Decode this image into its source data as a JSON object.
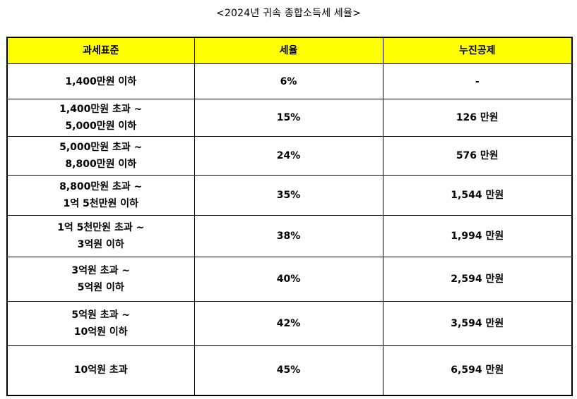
{
  "caption": "<2024년 귀속 종합소득세 세율>",
  "table": {
    "headers": [
      "과세표준",
      "세율",
      "누진공제"
    ],
    "rows": [
      {
        "bracket": [
          "1,400만원 이하",
          ""
        ],
        "rate": "6%",
        "deduction": "-"
      },
      {
        "bracket": [
          "1,400만원 초과 ~",
          "5,000만원 이하"
        ],
        "rate": "15%",
        "deduction": "126 만원"
      },
      {
        "bracket": [
          "5,000만원 초과 ~",
          "8,800만원 이하"
        ],
        "rate": "24%",
        "deduction": "576 만원"
      },
      {
        "bracket": [
          "8,800만원 초과 ~",
          "1억 5천만원 이하"
        ],
        "rate": "35%",
        "deduction": "1,544 만원"
      },
      {
        "bracket": [
          "1억 5천만원 초과 ~",
          "3억원 이하"
        ],
        "rate": "38%",
        "deduction": "1,994 만원"
      },
      {
        "bracket": [
          "3억원 초과 ~",
          "5억원 이하"
        ],
        "rate": "40%",
        "deduction": "2,594 만원"
      },
      {
        "bracket": [
          "5억원 초과 ~",
          "10억원 이하"
        ],
        "rate": "42%",
        "deduction": "3,594 만원"
      },
      {
        "bracket": [
          "10억원 초과",
          ""
        ],
        "rate": "45%",
        "deduction": "6,594 만원"
      }
    ]
  }
}
